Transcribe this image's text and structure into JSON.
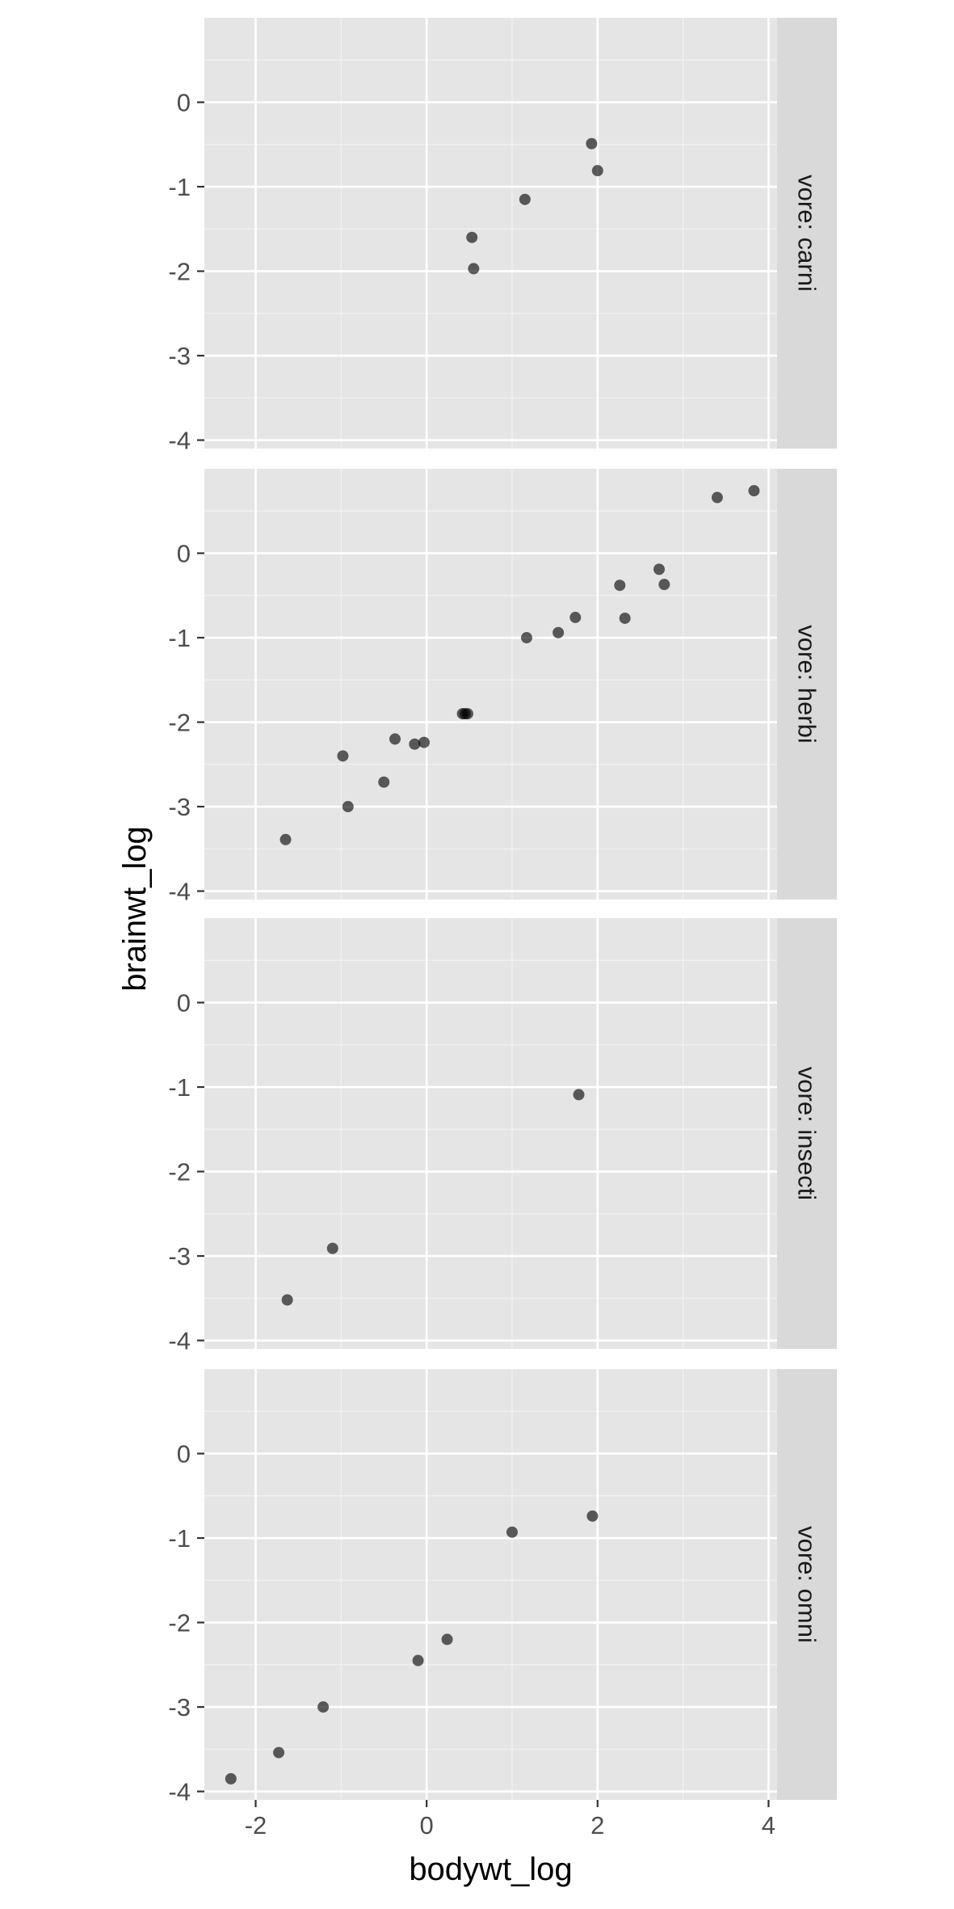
{
  "chart_data": {
    "type": "scatter",
    "xlabel": "bodywt_log",
    "ylabel": "brainwt_log",
    "xlim": [
      -2.6,
      4.1
    ],
    "ylim": [
      -4.1,
      1.0
    ],
    "x_ticks": [
      -2,
      0,
      2,
      4
    ],
    "y_ticks": [
      0,
      -1,
      -2,
      -3,
      -4
    ],
    "grid": true,
    "facet_var": "vore",
    "panels": [
      {
        "label": "vore: carni",
        "points": [
          [
            1.93,
            -0.49
          ],
          [
            2.0,
            -0.81
          ],
          [
            1.15,
            -1.15
          ],
          [
            0.53,
            -1.6
          ],
          [
            0.55,
            -1.97
          ]
        ]
      },
      {
        "label": "vore: herbi",
        "points": [
          [
            3.83,
            0.74
          ],
          [
            3.4,
            0.66
          ],
          [
            2.72,
            -0.19
          ],
          [
            2.26,
            -0.38
          ],
          [
            2.78,
            -0.37
          ],
          [
            2.32,
            -0.77
          ],
          [
            1.74,
            -0.76
          ],
          [
            1.54,
            -0.94
          ],
          [
            1.17,
            -1.0
          ],
          [
            0.42,
            -1.9
          ],
          [
            0.45,
            -1.9
          ],
          [
            0.48,
            -1.9
          ],
          [
            -0.14,
            -2.26
          ],
          [
            -0.03,
            -2.24
          ],
          [
            -0.37,
            -2.2
          ],
          [
            -0.98,
            -2.4
          ],
          [
            -0.5,
            -2.71
          ],
          [
            -0.92,
            -3.0
          ],
          [
            -1.65,
            -3.39
          ]
        ]
      },
      {
        "label": "vore: insecti",
        "points": [
          [
            1.78,
            -1.09
          ],
          [
            -1.1,
            -2.91
          ],
          [
            -1.63,
            -3.52
          ]
        ]
      },
      {
        "label": "vore: omni",
        "points": [
          [
            1.94,
            -0.74
          ],
          [
            1.0,
            -0.93
          ],
          [
            0.24,
            -2.2
          ],
          [
            -0.1,
            -2.45
          ],
          [
            -1.21,
            -3.0
          ],
          [
            -1.73,
            -3.54
          ],
          [
            -2.29,
            -3.85
          ]
        ]
      }
    ]
  }
}
